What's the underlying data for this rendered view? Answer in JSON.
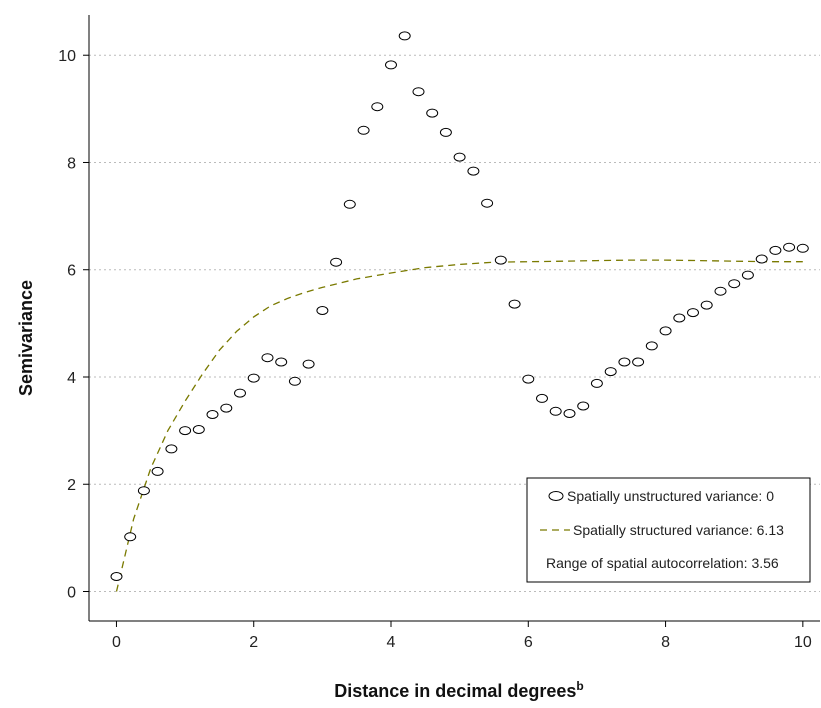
{
  "chart_data": {
    "type": "scatter",
    "xlabel": "Distance in decimal degrees",
    "xlabel_superscript": "b",
    "ylabel": "Semivariance",
    "xlim": [
      -0.4,
      10.25
    ],
    "ylim": [
      -0.55,
      10.75
    ],
    "x_ticks": [
      0,
      2,
      4,
      6,
      8,
      10
    ],
    "y_ticks": [
      0,
      2,
      4,
      6,
      8,
      10
    ],
    "grid": "horizontal dotted",
    "legend_position": "bottom-right",
    "colors": {
      "points": "#000000",
      "curve": "#7a7a00",
      "grid": "#bbbbbb",
      "axis": "#000000"
    },
    "series": [
      {
        "name": "Spatially unstructured variance: 0",
        "kind": "points",
        "marker": "open-ellipse",
        "x": [
          0.0,
          0.2,
          0.4,
          0.6,
          0.8,
          1.0,
          1.2,
          1.4,
          1.6,
          1.8,
          2.0,
          2.2,
          2.4,
          2.6,
          2.8,
          3.0,
          3.2,
          3.4,
          3.6,
          3.8,
          4.0,
          4.2,
          4.4,
          4.6,
          4.8,
          5.0,
          5.2,
          5.4,
          5.6,
          5.8,
          6.0,
          6.2,
          6.4,
          6.6,
          6.8,
          7.0,
          7.2,
          7.4,
          7.6,
          7.8,
          8.0,
          8.2,
          8.4,
          8.6,
          8.8,
          9.0,
          9.2,
          9.4,
          9.6,
          9.8,
          10.0
        ],
        "y": [
          0.28,
          1.02,
          1.88,
          2.24,
          2.66,
          3.0,
          3.02,
          3.3,
          3.42,
          3.7,
          3.98,
          4.36,
          4.28,
          3.92,
          4.24,
          5.24,
          6.14,
          7.22,
          8.6,
          9.04,
          9.82,
          10.36,
          9.32,
          8.92,
          8.56,
          8.1,
          7.84,
          7.24,
          6.18,
          5.36,
          3.96,
          3.6,
          3.36,
          3.32,
          3.46,
          3.88,
          4.1,
          4.28,
          4.28,
          4.58,
          4.86,
          5.1,
          5.2,
          5.34,
          5.6,
          5.74,
          5.9,
          6.2,
          6.36,
          6.42,
          6.4
        ]
      },
      {
        "name": "Spatially structured variance: 6.13",
        "kind": "line",
        "style": "dashed",
        "x": [
          0,
          0.25,
          0.5,
          0.75,
          1,
          1.25,
          1.5,
          1.75,
          2,
          2.25,
          2.5,
          2.75,
          3,
          3.5,
          4,
          4.5,
          5,
          5.5,
          6,
          6.5,
          7,
          7.5,
          8,
          8.5,
          9,
          9.5,
          10
        ],
        "y": [
          0,
          1.35,
          2.3,
          3.0,
          3.55,
          4.05,
          4.5,
          4.85,
          5.12,
          5.33,
          5.47,
          5.58,
          5.67,
          5.83,
          5.94,
          6.04,
          6.1,
          6.14,
          6.15,
          6.16,
          6.17,
          6.18,
          6.18,
          6.17,
          6.16,
          6.15,
          6.15
        ]
      }
    ],
    "legend_entries": [
      "Spatially unstructured variance: 0",
      "Spatially structured variance: 6.13",
      "Range of spatial autocorrelation: 3.56"
    ]
  }
}
